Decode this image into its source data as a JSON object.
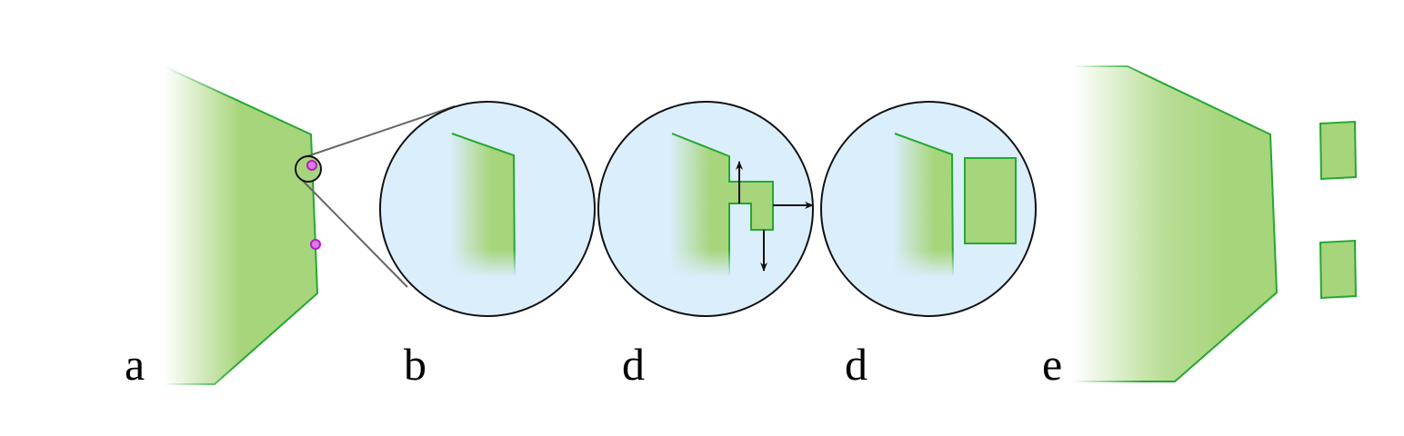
{
  "panels": [
    {
      "id": "a",
      "label": "a"
    },
    {
      "id": "b",
      "label": "b"
    },
    {
      "id": "c",
      "label": "d"
    },
    {
      "id": "d",
      "label": "d"
    },
    {
      "id": "e",
      "label": "e"
    }
  ],
  "colors": {
    "fill": "#a7d57b",
    "stroke": "#23a830",
    "circle_fill": "#dbeefc",
    "marker_fill": "#e07ae8",
    "marker_stroke": "#b31fbf",
    "line": "#111111"
  }
}
